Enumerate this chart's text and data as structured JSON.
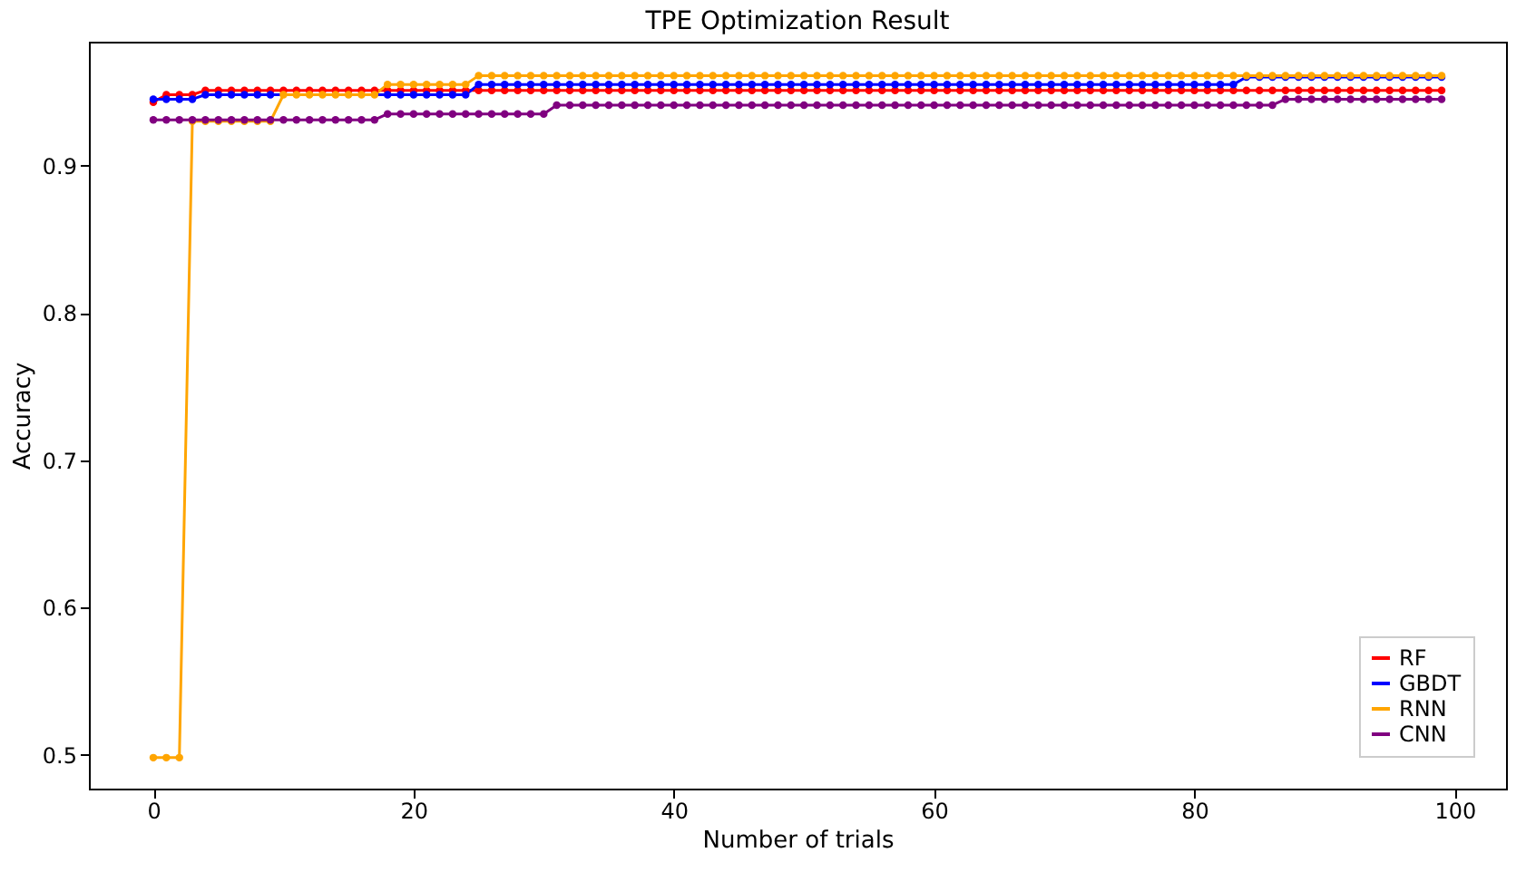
{
  "chart_data": {
    "type": "line",
    "title": "TPE Optimization Result",
    "xlabel": "Number of trials",
    "ylabel": "Accuracy",
    "xlim": [
      -4.95,
      103.95
    ],
    "ylim": [
      0.477,
      0.984
    ],
    "xticks": [
      0,
      20,
      40,
      60,
      80,
      100
    ],
    "yticks": [
      0.5,
      0.6,
      0.7,
      0.8,
      0.9
    ],
    "marker": "circle",
    "line_style": "solid",
    "legend": "bottom right",
    "x": [
      0,
      1,
      2,
      3,
      4,
      5,
      6,
      7,
      8,
      9,
      10,
      11,
      12,
      13,
      14,
      15,
      16,
      17,
      18,
      19,
      20,
      21,
      22,
      23,
      24,
      25,
      26,
      27,
      28,
      29,
      30,
      31,
      32,
      33,
      34,
      35,
      36,
      37,
      38,
      39,
      40,
      41,
      42,
      43,
      44,
      45,
      46,
      47,
      48,
      49,
      50,
      51,
      52,
      53,
      54,
      55,
      56,
      57,
      58,
      59,
      60,
      61,
      62,
      63,
      64,
      65,
      66,
      67,
      68,
      69,
      70,
      71,
      72,
      73,
      74,
      75,
      76,
      77,
      78,
      79,
      80,
      81,
      82,
      83,
      84,
      85,
      86,
      87,
      88,
      89,
      90,
      91,
      92,
      93,
      94,
      95,
      96,
      97,
      98,
      99
    ],
    "series": [
      {
        "name": "RF",
        "color": "#ff0000",
        "values": [
          0.943,
          0.948,
          0.948,
          0.948,
          0.951,
          0.951,
          0.951,
          0.951,
          0.951,
          0.951,
          0.951,
          0.951,
          0.951,
          0.951,
          0.951,
          0.951,
          0.951,
          0.951,
          0.951,
          0.951,
          0.951,
          0.951,
          0.951,
          0.951,
          0.951,
          0.951,
          0.951,
          0.951,
          0.951,
          0.951,
          0.951,
          0.951,
          0.951,
          0.951,
          0.951,
          0.951,
          0.951,
          0.951,
          0.951,
          0.951,
          0.951,
          0.951,
          0.951,
          0.951,
          0.951,
          0.951,
          0.951,
          0.951,
          0.951,
          0.951,
          0.951,
          0.951,
          0.951,
          0.951,
          0.951,
          0.951,
          0.951,
          0.951,
          0.951,
          0.951,
          0.951,
          0.951,
          0.951,
          0.951,
          0.951,
          0.951,
          0.951,
          0.951,
          0.951,
          0.951,
          0.951,
          0.951,
          0.951,
          0.951,
          0.951,
          0.951,
          0.951,
          0.951,
          0.951,
          0.951,
          0.951,
          0.951,
          0.951,
          0.951,
          0.951,
          0.951,
          0.951,
          0.951,
          0.951,
          0.951,
          0.951,
          0.951,
          0.951,
          0.951,
          0.951,
          0.951,
          0.951,
          0.951,
          0.951,
          0.951
        ]
      },
      {
        "name": "GBDT",
        "color": "#0000ff",
        "values": [
          0.945,
          0.945,
          0.945,
          0.945,
          0.948,
          0.948,
          0.948,
          0.948,
          0.948,
          0.948,
          null,
          null,
          null,
          null,
          null,
          null,
          null,
          null,
          0.948,
          0.948,
          0.948,
          0.948,
          0.948,
          0.948,
          0.948,
          0.955,
          0.955,
          0.955,
          0.955,
          0.955,
          0.955,
          0.955,
          0.955,
          0.955,
          0.955,
          0.955,
          0.955,
          0.955,
          0.955,
          0.955,
          0.955,
          0.955,
          0.955,
          0.955,
          0.955,
          0.955,
          0.955,
          0.955,
          0.955,
          0.955,
          0.955,
          0.955,
          0.955,
          0.955,
          0.955,
          0.955,
          0.955,
          0.955,
          0.955,
          0.955,
          0.955,
          0.955,
          0.955,
          0.955,
          0.955,
          0.955,
          0.955,
          0.955,
          0.955,
          0.955,
          0.955,
          0.955,
          0.955,
          0.955,
          0.955,
          0.955,
          0.955,
          0.955,
          0.955,
          0.955,
          0.955,
          0.955,
          0.955,
          0.955,
          0.96,
          0.96,
          0.96,
          0.96,
          0.96,
          0.96,
          0.96,
          0.96,
          0.96,
          0.96,
          0.96,
          0.96,
          0.96,
          0.96,
          0.96,
          0.96
        ]
      },
      {
        "name": "RNN",
        "color": "#ffa500",
        "values": [
          0.498,
          0.498,
          0.498,
          0.93,
          0.93,
          0.93,
          0.93,
          0.93,
          0.93,
          0.93,
          0.948,
          0.948,
          0.948,
          0.948,
          0.948,
          0.948,
          0.948,
          0.948,
          0.955,
          0.955,
          0.955,
          0.955,
          0.955,
          0.955,
          0.955,
          0.961,
          0.961,
          0.961,
          0.961,
          0.961,
          0.961,
          0.961,
          0.961,
          0.961,
          0.961,
          0.961,
          0.961,
          0.961,
          0.961,
          0.961,
          0.961,
          0.961,
          0.961,
          0.961,
          0.961,
          0.961,
          0.961,
          0.961,
          0.961,
          0.961,
          0.961,
          0.961,
          0.961,
          0.961,
          0.961,
          0.961,
          0.961,
          0.961,
          0.961,
          0.961,
          0.961,
          0.961,
          0.961,
          0.961,
          0.961,
          0.961,
          0.961,
          0.961,
          0.961,
          0.961,
          0.961,
          0.961,
          0.961,
          0.961,
          0.961,
          0.961,
          0.961,
          0.961,
          0.961,
          0.961,
          0.961,
          0.961,
          0.961,
          0.961,
          0.961,
          0.961,
          0.961,
          0.961,
          0.961,
          0.961,
          0.961,
          0.961,
          0.961,
          0.961,
          0.961,
          0.961,
          0.961,
          0.961,
          0.961,
          0.961
        ]
      },
      {
        "name": "CNN",
        "color": "#800080",
        "values": [
          0.931,
          0.931,
          0.931,
          0.931,
          0.931,
          0.931,
          0.931,
          0.931,
          0.931,
          0.931,
          0.931,
          0.931,
          0.931,
          0.931,
          0.931,
          0.931,
          0.931,
          0.931,
          0.935,
          0.935,
          0.935,
          0.935,
          0.935,
          0.935,
          0.935,
          0.935,
          0.935,
          0.935,
          0.935,
          0.935,
          0.935,
          0.941,
          0.941,
          0.941,
          0.941,
          0.941,
          0.941,
          0.941,
          0.941,
          0.941,
          0.941,
          0.941,
          0.941,
          0.941,
          0.941,
          0.941,
          0.941,
          0.941,
          0.941,
          0.941,
          0.941,
          0.941,
          0.941,
          0.941,
          0.941,
          0.941,
          0.941,
          0.941,
          0.941,
          0.941,
          0.941,
          0.941,
          0.941,
          0.941,
          0.941,
          0.941,
          0.941,
          0.941,
          0.941,
          0.941,
          0.941,
          0.941,
          0.941,
          0.941,
          0.941,
          0.941,
          0.941,
          0.941,
          0.941,
          0.941,
          0.941,
          0.941,
          0.941,
          0.941,
          0.941,
          0.941,
          0.941,
          0.945,
          0.945,
          0.945,
          0.945,
          0.945,
          0.945,
          0.945,
          0.945,
          0.945,
          0.945,
          0.945,
          0.945,
          0.945
        ]
      }
    ]
  }
}
